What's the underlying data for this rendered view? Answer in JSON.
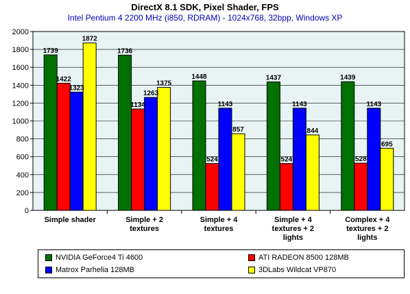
{
  "title": "DirectX 8.1 SDK, Pixel Shader, FPS",
  "subtitle": "Intel Pentium 4 2200 MHz (i850, RDRAM) - 1024x768, 32bpp, Windows XP",
  "chart_data": {
    "type": "bar",
    "title": "DirectX 8.1 SDK, Pixel Shader, FPS",
    "subtitle": "Intel Pentium 4 2200 MHz (i850, RDRAM) - 1024x768, 32bpp, Windows XP",
    "categories": [
      [
        "Simple shader"
      ],
      [
        "Simple + 2",
        "textures"
      ],
      [
        "Simple + 4",
        "textures"
      ],
      [
        "Simple + 4",
        "textures + 2",
        "lights"
      ],
      [
        "Complex + 4",
        "textures + 2",
        "lights"
      ]
    ],
    "series": [
      {
        "name": "NVIDIA GeForce4 Ti 4600",
        "color": "#007000",
        "values": [
          1739,
          1736,
          1448,
          1437,
          1439
        ]
      },
      {
        "name": "ATI RADEON 8500 128MB",
        "color": "#ff0000",
        "values": [
          1422,
          1134,
          524,
          524,
          528
        ]
      },
      {
        "name": "Matrox Parhelia 128MB",
        "color": "#0000ff",
        "values": [
          1323,
          1263,
          1143,
          1143,
          1143
        ]
      },
      {
        "name": "3DLabs Wildcat VP870",
        "color": "#ffff00",
        "values": [
          1872,
          1375,
          857,
          844,
          695
        ]
      }
    ],
    "ylim": [
      0,
      2000
    ],
    "yticks": [
      0,
      200,
      400,
      600,
      800,
      1000,
      1200,
      1400,
      1600,
      1800,
      2000
    ],
    "grid": true,
    "legend_position": "bottom",
    "plot_background": "#e8f4f4"
  }
}
